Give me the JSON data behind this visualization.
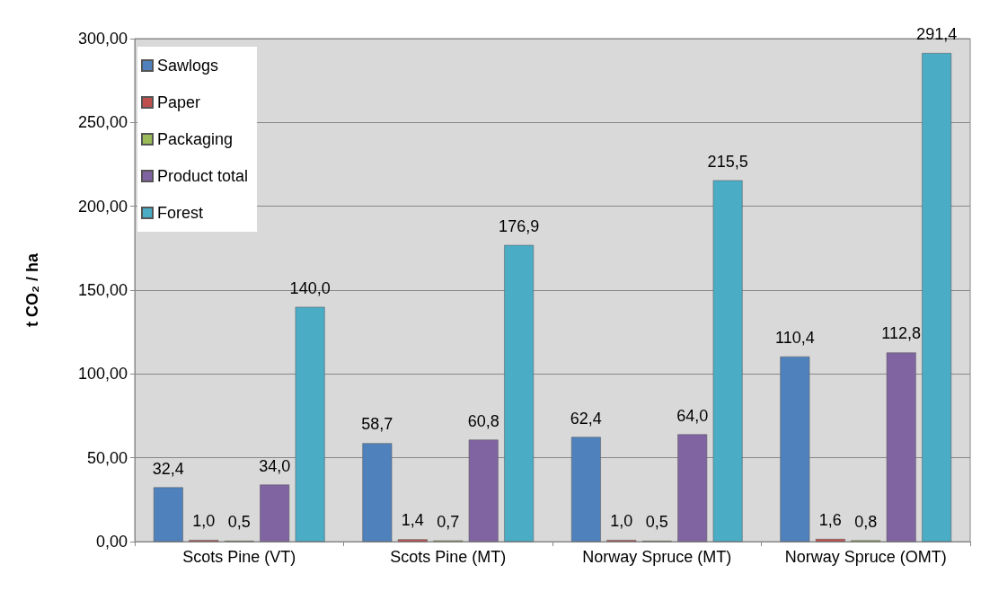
{
  "chart_data": {
    "type": "bar",
    "ylabel": "t CO₂ / ha",
    "categories": [
      "Scots Pine (VT)",
      "Scots Pine (MT)",
      "Norway Spruce (MT)",
      "Norway Spruce (OMT)"
    ],
    "series": [
      {
        "name": "Sawlogs",
        "color": "#4f81bd",
        "values": [
          32.4,
          58.7,
          62.4,
          110.4
        ],
        "value_labels": [
          "32,4",
          "58,7",
          "62,4",
          "110,4"
        ]
      },
      {
        "name": "Paper",
        "color": "#c0504d",
        "values": [
          1.0,
          1.4,
          1.0,
          1.6
        ],
        "value_labels": [
          "1,0",
          "1,4",
          "1,0",
          "1,6"
        ]
      },
      {
        "name": "Packaging",
        "color": "#9bbb59",
        "values": [
          0.5,
          0.7,
          0.5,
          0.8
        ],
        "value_labels": [
          "0,5",
          "0,7",
          "0,5",
          "0,8"
        ]
      },
      {
        "name": "Product total",
        "color": "#8064a2",
        "values": [
          34.0,
          60.8,
          64.0,
          112.8
        ],
        "value_labels": [
          "34,0",
          "60,8",
          "64,0",
          "112,8"
        ]
      },
      {
        "name": "Forest",
        "color": "#4bacc6",
        "values": [
          140.0,
          176.9,
          215.5,
          291.4
        ],
        "value_labels": [
          "140,0",
          "176,9",
          "215,5",
          "291,4"
        ]
      }
    ],
    "ylim": [
      0,
      300
    ],
    "yticks": [
      {
        "value": 0,
        "label": "0,00"
      },
      {
        "value": 50,
        "label": "50,00"
      },
      {
        "value": 100,
        "label": "100,00"
      },
      {
        "value": 150,
        "label": "150,00"
      },
      {
        "value": 200,
        "label": "200,00"
      },
      {
        "value": 250,
        "label": "250,00"
      },
      {
        "value": 300,
        "label": "300,00"
      }
    ],
    "grid": "y",
    "legend": "top left"
  }
}
